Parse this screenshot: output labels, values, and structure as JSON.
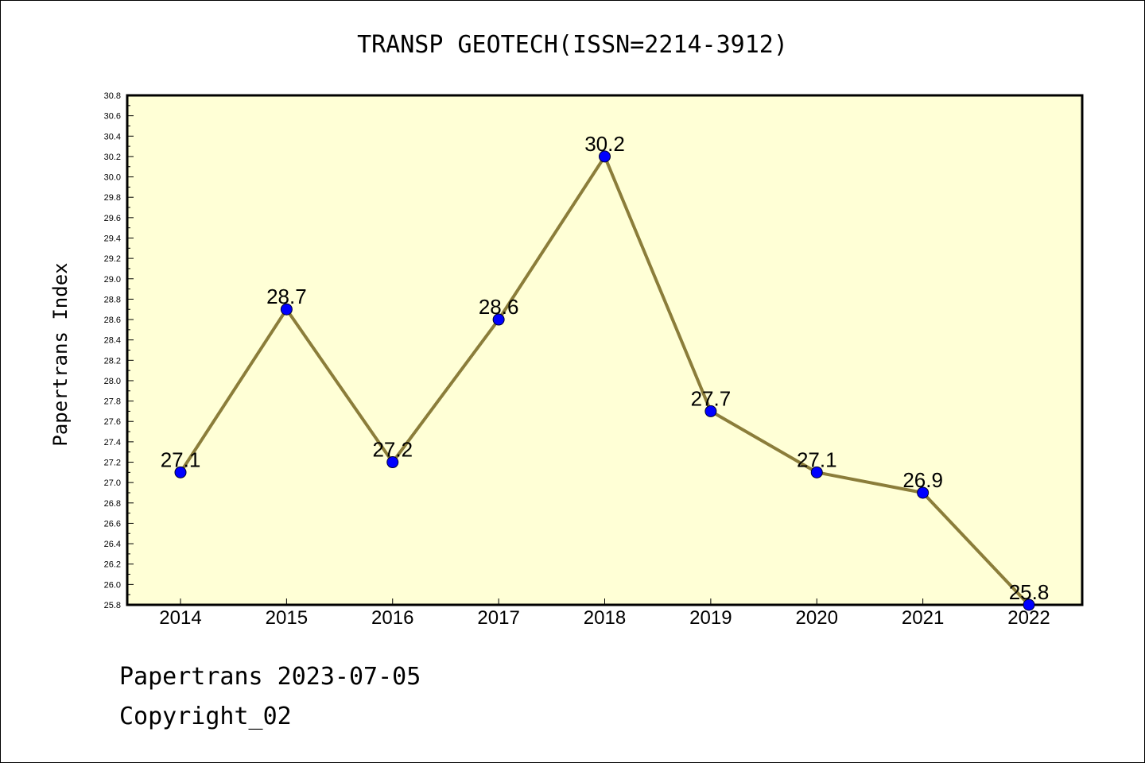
{
  "chart_data": {
    "type": "line",
    "title": "TRANSP GEOTECH(ISSN=2214-3912)",
    "ylabel": "Papertrans Index",
    "xlabel": "",
    "categories": [
      "2014",
      "2015",
      "2016",
      "2017",
      "2018",
      "2019",
      "2020",
      "2021",
      "2022"
    ],
    "series": [
      {
        "values": [
          27.1,
          28.7,
          27.2,
          28.6,
          30.2,
          27.7,
          27.1,
          26.9,
          25.8
        ]
      }
    ],
    "data_labels": [
      "27.1",
      "28.7",
      "27.2",
      "28.6",
      "30.2",
      "27.7",
      "27.1",
      "26.9",
      "25.8"
    ],
    "ylim": [
      25.8,
      30.8
    ],
    "yticks": [
      "25.8",
      "26.0",
      "26.2",
      "26.4",
      "26.6",
      "26.8",
      "27.0",
      "27.2",
      "27.4",
      "27.6",
      "27.8",
      "28.0",
      "28.2",
      "28.4",
      "28.6",
      "28.8",
      "29.0",
      "29.2",
      "29.4",
      "29.6",
      "29.8",
      "30.0",
      "30.2",
      "30.4",
      "30.6",
      "30.8"
    ],
    "grid": false,
    "colors": {
      "plot_background": "#ffffd6",
      "line": "#8b7d3a",
      "marker": "#0000ff"
    }
  },
  "footer": {
    "line1": "Papertrans 2023-07-05",
    "line2": "Copyright_02"
  }
}
